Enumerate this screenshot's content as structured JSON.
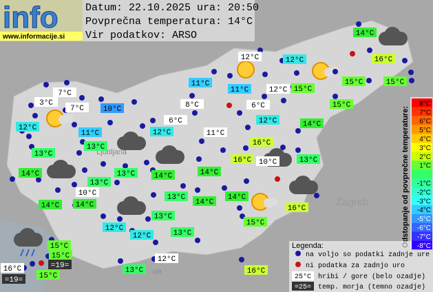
{
  "logo": {
    "text": "info",
    "url": "www.informacije.si"
  },
  "header": {
    "date_line": "Datum: 22.10.2025 ura: 20:50",
    "avg_line": "Povprečna temperatura: 14°C",
    "source_line": "Vir podatkov: ARSO"
  },
  "map_labels": [
    "Ljubljana",
    "Zagreb",
    "HR"
  ],
  "stations": [
    {
      "label": "12°C",
      "color": "#ffffff"
    },
    {
      "label": "12°C",
      "color": "#33e8e8"
    },
    {
      "label": "14°C",
      "color": "#33ee33"
    },
    {
      "label": "16°C",
      "color": "#ccff33"
    },
    {
      "label": "11°C",
      "color": "#33ccff"
    },
    {
      "label": "11°C",
      "color": "#33ccff"
    },
    {
      "label": "12°C",
      "color": "#ffffff"
    },
    {
      "label": "15°C",
      "color": "#66ff33"
    },
    {
      "label": "15°C",
      "color": "#66ff33"
    },
    {
      "label": "15°C",
      "color": "#66ff33"
    },
    {
      "label": "7°C",
      "color": "#ffffff"
    },
    {
      "label": "3°C",
      "color": "#ffffff"
    },
    {
      "label": "7°C",
      "color": "#ffffff"
    },
    {
      "label": "10°C",
      "color": "#3399ff"
    },
    {
      "label": "8°C",
      "color": "#ffffff"
    },
    {
      "label": "6°C",
      "color": "#ffffff"
    },
    {
      "label": "15°C",
      "color": "#66ff33"
    },
    {
      "label": "12°C",
      "color": "#33e8e8"
    },
    {
      "label": "6°C",
      "color": "#ffffff"
    },
    {
      "label": "12°C",
      "color": "#33e8e8"
    },
    {
      "label": "11°C",
      "color": "#33ccff"
    },
    {
      "label": "12°C",
      "color": "#33e8e8"
    },
    {
      "label": "11°C",
      "color": "#ffffff"
    },
    {
      "label": "14°C",
      "color": "#33ee33"
    },
    {
      "label": "13°C",
      "color": "#33ff66"
    },
    {
      "label": "16°C",
      "color": "#ccff33"
    },
    {
      "label": "13°C",
      "color": "#33ff66"
    },
    {
      "label": "16°C",
      "color": "#ccff33"
    },
    {
      "label": "10°C",
      "color": "#ffffff"
    },
    {
      "label": "13°C",
      "color": "#33ff66"
    },
    {
      "label": "14°C",
      "color": "#33ee33"
    },
    {
      "label": "13°C",
      "color": "#33ff66"
    },
    {
      "label": "14°C",
      "color": "#33ee33"
    },
    {
      "label": "14°C",
      "color": "#33ee33"
    },
    {
      "label": "13°C",
      "color": "#33ff66"
    },
    {
      "label": "10°C",
      "color": "#ffffff"
    },
    {
      "label": "14°C",
      "color": "#33ee33"
    },
    {
      "label": "14°C",
      "color": "#33ee33"
    },
    {
      "label": "13°C",
      "color": "#33ff66"
    },
    {
      "label": "14°C",
      "color": "#33ee33"
    },
    {
      "label": "14°C",
      "color": "#33ee33"
    },
    {
      "label": "16°C",
      "color": "#ccff33"
    },
    {
      "label": "13°C",
      "color": "#33ff66"
    },
    {
      "label": "15°C",
      "color": "#66ff33"
    },
    {
      "label": "12°C",
      "color": "#33e8e8"
    },
    {
      "label": "12°C",
      "color": "#33e8e8"
    },
    {
      "label": "13°C",
      "color": "#33ff66"
    },
    {
      "label": "15°C",
      "color": "#66ff33"
    },
    {
      "label": "15°C",
      "color": "#66ff33"
    },
    {
      "label": "16°C",
      "color": "#ffffff"
    },
    {
      "label": "=19=",
      "color": "#333333"
    },
    {
      "label": "13°C",
      "color": "#33ff66"
    },
    {
      "label": "12°C",
      "color": "#ffffff"
    },
    {
      "label": "16°C",
      "color": "#ccff33"
    },
    {
      "label": "15°C",
      "color": "#66ff33"
    },
    {
      "label": "=19=",
      "color": "#333333"
    }
  ],
  "scale": {
    "title": "Odstopanje od povprečne temperature:",
    "items": [
      {
        "label": "8°C",
        "color": "#ff0000"
      },
      {
        "label": "7°C",
        "color": "#ff3300"
      },
      {
        "label": "6°C",
        "color": "#ff6600"
      },
      {
        "label": "5°C",
        "color": "#ff9900"
      },
      {
        "label": "4°C",
        "color": "#ffcc00"
      },
      {
        "label": "3°C",
        "color": "#ffff00"
      },
      {
        "label": "2°C",
        "color": "#ccff00"
      },
      {
        "label": "1°C",
        "color": "#66ff33"
      },
      {
        "label": "-1°C",
        "color": "#33ff99"
      },
      {
        "label": "-2°C",
        "color": "#33ffcc"
      },
      {
        "label": "-3°C",
        "color": "#33ffff"
      },
      {
        "label": "-4°C",
        "color": "#33ccff"
      },
      {
        "label": "-5°C",
        "color": "#3399ff"
      },
      {
        "label": "-6°C",
        "color": "#3366ff"
      },
      {
        "label": "-7°C",
        "color": "#3333ff"
      },
      {
        "label": "-8°C",
        "color": "#3300ff"
      }
    ]
  },
  "legend": {
    "title": "Legenda:",
    "available": "na voljo so podatki zadnje ure",
    "missing": "ni podatka za zadnjo uro",
    "mountain_sample": "25°C",
    "mountain": "hribi / gore (belo ozadje)",
    "sea_sample": "=25=",
    "sea": "temp. morja (temno ozadje)"
  }
}
